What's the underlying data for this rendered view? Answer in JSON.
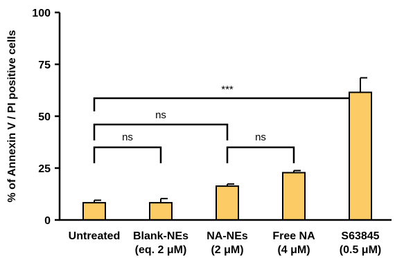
{
  "chart_data": {
    "type": "bar",
    "title": "",
    "xlabel": "",
    "ylabel": "% of Annexin V / PI positive cells",
    "ylim": [
      0,
      100
    ],
    "yticks": [
      0,
      25,
      50,
      75,
      100
    ],
    "categories": [
      [
        "Untreated"
      ],
      [
        "Blank-NEs",
        "(eq. 2 μM)"
      ],
      [
        "NA-NEs",
        "(2 μM)"
      ],
      [
        "Free NA",
        "(4 μM)"
      ],
      [
        "S63845",
        "(0.5 μM)"
      ]
    ],
    "values": [
      8.3,
      8.3,
      16.3,
      22.8,
      61.5
    ],
    "errors": [
      1.2,
      2.0,
      1.0,
      1.0,
      7.0
    ],
    "bar_color": "#FDCB66",
    "bar_edge_color": "#000000",
    "grid": false,
    "annotations": [
      {
        "from": 0,
        "to": 4,
        "label": "***"
      },
      {
        "from": 0,
        "to": 2,
        "label": "ns"
      },
      {
        "from": 0,
        "to": 1,
        "label": "ns"
      },
      {
        "from": 2,
        "to": 3,
        "label": "ns"
      }
    ]
  }
}
